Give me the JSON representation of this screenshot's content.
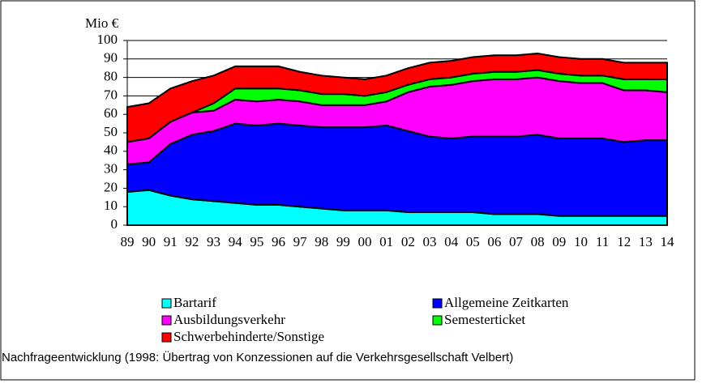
{
  "chart_data": {
    "type": "stacked_area",
    "y_label": "Mio €",
    "caption": "Nachfrageentwicklung (1998: Übertrag von Konzessionen auf die Verkehrsgesellschaft Velbert)",
    "categories": [
      "89",
      "90",
      "91",
      "92",
      "93",
      "94",
      "95",
      "96",
      "97",
      "98",
      "99",
      "00",
      "01",
      "02",
      "03",
      "04",
      "05",
      "06",
      "07",
      "08",
      "09",
      "10",
      "11",
      "12",
      "13",
      "14"
    ],
    "series": [
      {
        "name": "Bartarif",
        "color": "#00ffff",
        "values": [
          18,
          19,
          16,
          14,
          13,
          12,
          11,
          11,
          10,
          9,
          8,
          8,
          8,
          7,
          7,
          7,
          7,
          6,
          6,
          6,
          5,
          5,
          5,
          5,
          5,
          5
        ]
      },
      {
        "name": "Allgemeine Zeitkarten",
        "color": "#0000ff",
        "values": [
          15,
          15,
          28,
          35,
          38,
          43,
          43,
          44,
          44,
          44,
          45,
          45,
          46,
          44,
          41,
          40,
          41,
          42,
          42,
          43,
          42,
          42,
          42,
          40,
          41,
          41
        ]
      },
      {
        "name": "Ausbildungsverkehr",
        "color": "#ff00ff",
        "values": [
          12,
          13,
          12,
          12,
          11,
          13,
          13,
          13,
          13,
          12,
          12,
          12,
          13,
          21,
          27,
          29,
          30,
          31,
          31,
          31,
          31,
          30,
          30,
          28,
          27,
          26
        ]
      },
      {
        "name": "Semesterticket",
        "color": "#00ff00",
        "values": [
          0,
          0,
          0,
          0,
          4,
          6,
          7,
          6,
          6,
          6,
          6,
          5,
          5,
          4,
          4,
          4,
          4,
          4,
          4,
          4,
          4,
          4,
          4,
          6,
          6,
          7
        ]
      },
      {
        "name": "Schwerbehinderte/Sonstige",
        "color": "#ff0000",
        "values": [
          19,
          19,
          18,
          17,
          15,
          12,
          12,
          12,
          10,
          10,
          9,
          9,
          9,
          9,
          9,
          9,
          9,
          9,
          9,
          9,
          9,
          9,
          9,
          9,
          9,
          9
        ]
      }
    ],
    "ylim": [
      0,
      100
    ],
    "yticks": [
      0,
      10,
      20,
      30,
      40,
      50,
      60,
      70,
      80,
      90,
      100
    ],
    "grid": true
  }
}
